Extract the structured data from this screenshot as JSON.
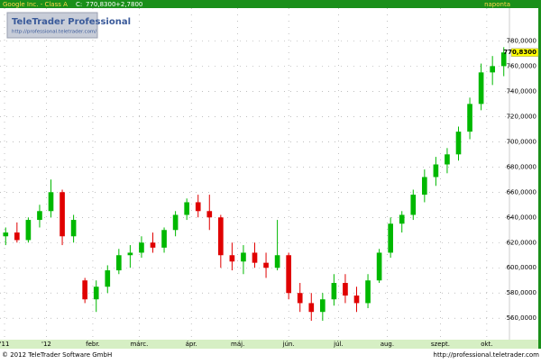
{
  "header": {
    "name": "Google Inc. - Class A",
    "close_label": "C:",
    "close": "770,8300",
    "change": "+2,7800",
    "interval": "naponta"
  },
  "logo": {
    "title": "TeleTrader Professional",
    "url": "http://professional.teletrader.com/"
  },
  "footer": {
    "copyright": "© 2012 TeleTrader Software GmbH",
    "url": "http://professional.teletrader.com"
  },
  "chart_data": {
    "type": "candlestick",
    "x": [
      0,
      1,
      2,
      3,
      4,
      5,
      6,
      7,
      8,
      9,
      10,
      11,
      12,
      13,
      14,
      15,
      16,
      17,
      18,
      19,
      20,
      21,
      22,
      23,
      24,
      25,
      26,
      27,
      28,
      29,
      30,
      31,
      32,
      33,
      34,
      35,
      36,
      37,
      38,
      39,
      40,
      41,
      42,
      43,
      44
    ],
    "open": [
      625,
      628,
      622,
      638,
      645,
      660,
      625,
      590,
      575,
      585,
      598,
      610,
      612,
      620,
      616,
      630,
      642,
      652,
      645,
      640,
      610,
      605,
      612,
      604,
      600,
      610,
      580,
      572,
      565,
      575,
      588,
      578,
      572,
      590,
      612,
      635,
      642,
      658,
      672,
      682,
      690,
      708,
      730,
      755,
      760
    ],
    "high": [
      632,
      636,
      640,
      650,
      670,
      662,
      642,
      592,
      590,
      602,
      615,
      618,
      625,
      628,
      632,
      645,
      655,
      658,
      658,
      642,
      620,
      618,
      620,
      612,
      638,
      612,
      588,
      580,
      580,
      595,
      595,
      585,
      595,
      615,
      640,
      645,
      662,
      678,
      688,
      695,
      712,
      735,
      762,
      768,
      775
    ],
    "low": [
      618,
      620,
      620,
      632,
      640,
      618,
      620,
      572,
      565,
      580,
      595,
      600,
      608,
      612,
      612,
      625,
      638,
      640,
      630,
      600,
      598,
      595,
      600,
      592,
      598,
      575,
      565,
      558,
      558,
      570,
      572,
      565,
      568,
      588,
      608,
      628,
      638,
      652,
      665,
      675,
      685,
      702,
      725,
      745,
      752
    ],
    "close": [
      628,
      622,
      638,
      645,
      660,
      625,
      638,
      575,
      585,
      598,
      610,
      612,
      620,
      616,
      630,
      642,
      652,
      645,
      640,
      610,
      605,
      612,
      604,
      600,
      610,
      580,
      572,
      565,
      575,
      588,
      578,
      572,
      590,
      612,
      635,
      642,
      658,
      672,
      682,
      690,
      708,
      730,
      755,
      760,
      770.83
    ],
    "up_color": "#00b800",
    "down_color": "#e00000",
    "xlim": [
      -0.5,
      44.5
    ],
    "xticks": [
      {
        "value": -0.1,
        "label": "'11"
      },
      {
        "value": 3.6,
        "label": "'12"
      },
      {
        "value": 7.7,
        "label": "febr."
      },
      {
        "value": 11.8,
        "label": "márc."
      },
      {
        "value": 16.4,
        "label": "ápr."
      },
      {
        "value": 20.5,
        "label": "máj."
      },
      {
        "value": 25,
        "label": "jún."
      },
      {
        "value": 29.4,
        "label": "júl."
      },
      {
        "value": 33.7,
        "label": "aug."
      },
      {
        "value": 38.4,
        "label": "szept."
      },
      {
        "value": 42.5,
        "label": "okt."
      }
    ],
    "ylim": [
      543,
      806
    ],
    "yticks": [
      {
        "value": 560,
        "label": "560,0000"
      },
      {
        "value": 580,
        "label": "580,0000"
      },
      {
        "value": 600,
        "label": "600,0000"
      },
      {
        "value": 620,
        "label": "620,0000"
      },
      {
        "value": 640,
        "label": "640,0000"
      },
      {
        "value": 660,
        "label": "660,0000"
      },
      {
        "value": 680,
        "label": "680,0000"
      },
      {
        "value": 700,
        "label": "700,0000"
      },
      {
        "value": 720,
        "label": "720,0000"
      },
      {
        "value": 740,
        "label": "740,0000"
      },
      {
        "value": 760,
        "label": "760,0000"
      },
      {
        "value": 780,
        "label": "780,0000"
      }
    ],
    "grid": true
  }
}
